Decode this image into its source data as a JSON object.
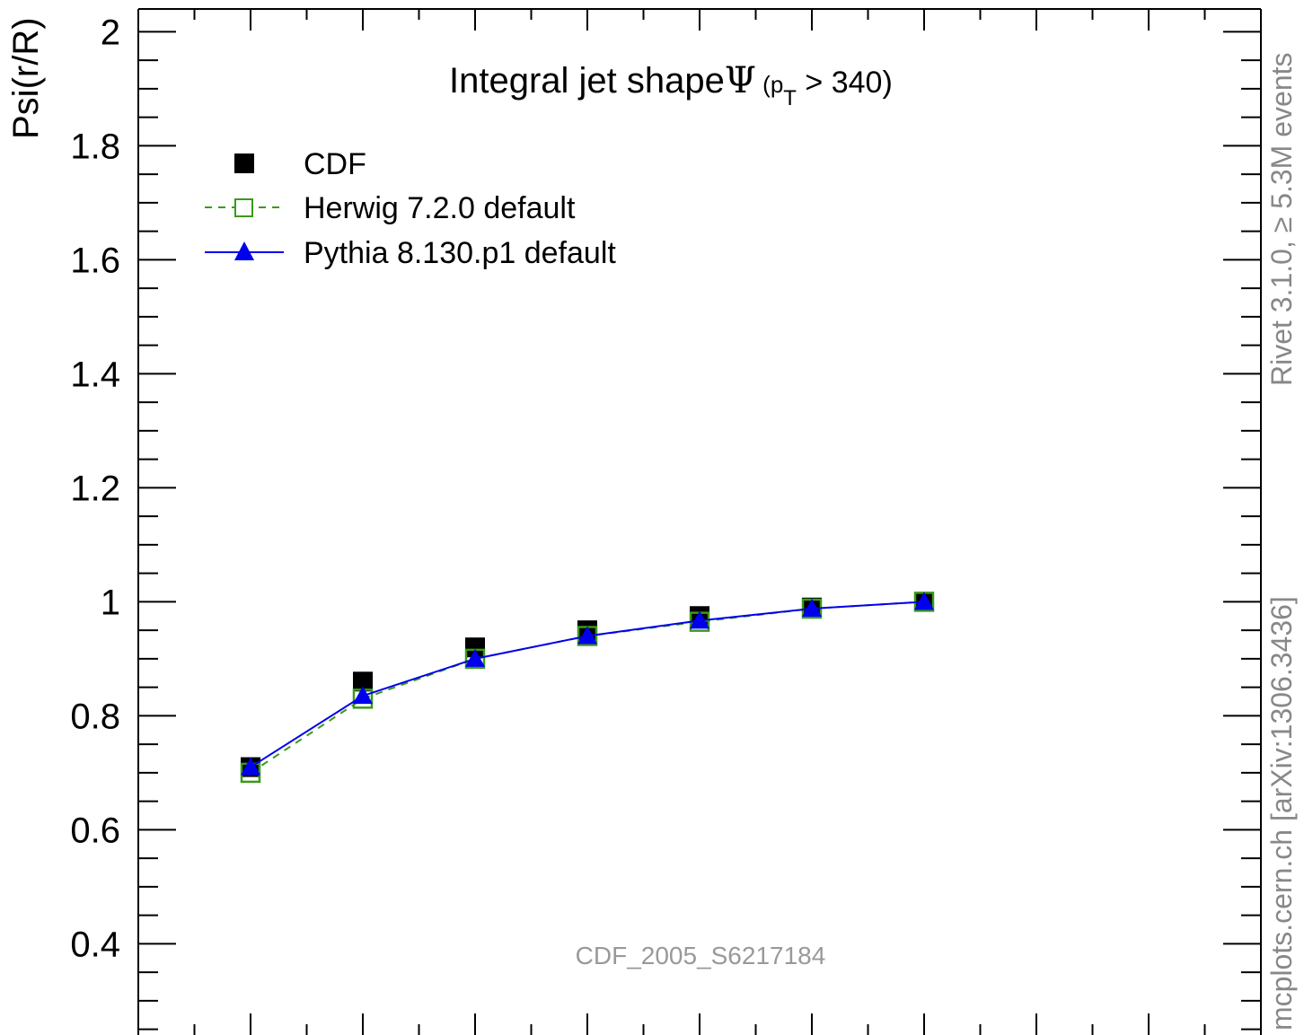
{
  "chart_data": {
    "type": "scatter",
    "title": {
      "main": "Integral jet shape",
      "symbol": "Ψ",
      "paren_open": " (p",
      "subscript": "T",
      "paren_close": " > 340)"
    },
    "ylabel": "Psi(r/R)",
    "xlabel": "",
    "ylim": [
      0.24,
      2.04
    ],
    "xlim": [
      0,
      1
    ],
    "yticks": [
      0.4,
      0.6,
      0.8,
      1,
      1.2,
      1.4,
      1.6,
      1.8,
      2
    ],
    "ytick_labels": [
      "0.4",
      "0.6",
      "0.8",
      "1",
      "1.2",
      "1.4",
      "1.6",
      "1.8",
      "2"
    ],
    "x": [
      0.1,
      0.2,
      0.3,
      0.4,
      0.5,
      0.6,
      0.7
    ],
    "series": [
      {
        "name": "CDF",
        "marker": "filled-square",
        "color": "#000000",
        "values": [
          0.71,
          0.86,
          0.92,
          0.95,
          0.975,
          0.99,
          1.0
        ]
      },
      {
        "name": "Herwig 7.2.0 default",
        "marker": "open-square",
        "line": "dashed",
        "color": "#3a9a1a",
        "values": [
          0.7,
          0.83,
          0.9,
          0.94,
          0.965,
          0.988,
          1.0
        ]
      },
      {
        "name": "Pythia 8.130.p1 default",
        "marker": "filled-triangle",
        "line": "solid",
        "color": "#0000ee",
        "values": [
          0.71,
          0.835,
          0.9,
          0.94,
          0.967,
          0.988,
          1.0
        ]
      }
    ],
    "grid": false,
    "legend_position": "top-left",
    "right_labels": {
      "rivet": "Rivet 3.1.0, ≥ 5.3M events",
      "mcplots": "mcplots.cern.ch [arXiv:1306.3436]"
    },
    "watermark": "CDF_2005_S6217184"
  }
}
